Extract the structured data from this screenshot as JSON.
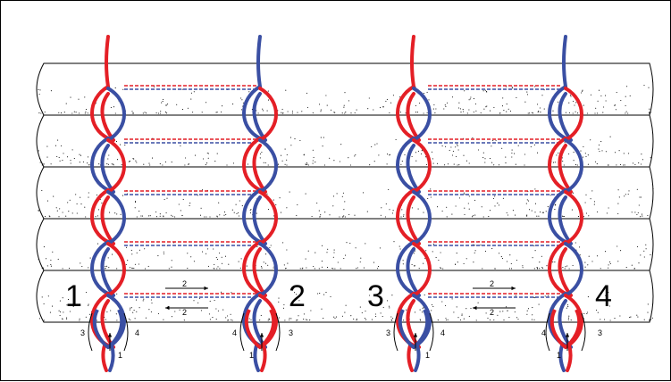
{
  "figure": {
    "stitch_numbers": [
      "1",
      "2",
      "3",
      "4"
    ],
    "passage_label": "2",
    "side_labels": {
      "left_outer": "3",
      "right_outer": "4",
      "alt_left": "4",
      "alt_right": "3"
    },
    "bottom_label": "1"
  },
  "colors": {
    "red_thread": "#e41f26",
    "blue_thread": "#3a4fa3",
    "outline": "#000000",
    "background": "#ffffff"
  },
  "panels": [
    {
      "number": "1",
      "left": "3",
      "right": "4",
      "pull": "1"
    },
    {
      "number": "2",
      "left": "4",
      "right": "3",
      "pull": "1"
    },
    {
      "number": "3",
      "left": "3",
      "right": "4",
      "pull": "1"
    },
    {
      "number": "4",
      "left": "4",
      "right": "3",
      "pull": "1"
    }
  ]
}
